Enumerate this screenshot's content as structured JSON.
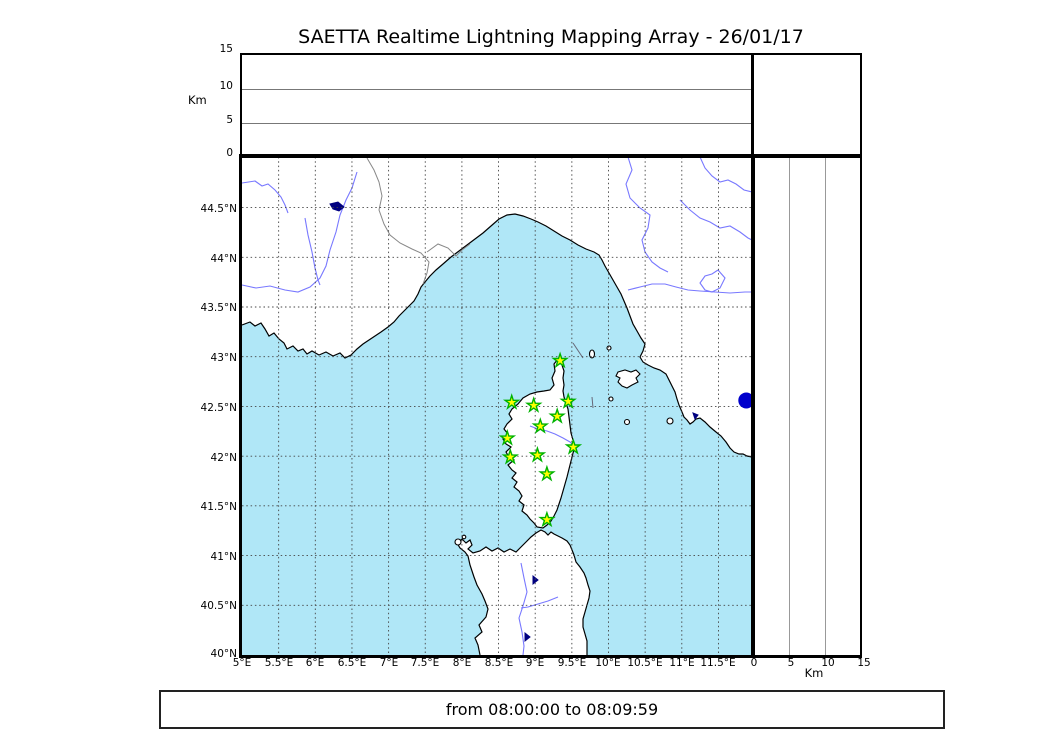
{
  "title": "SAETTA Realtime Lightning Mapping Array - 26/01/17",
  "status": {
    "text": "from 08:00:00 to 08:09:59"
  },
  "axes": {
    "top": {
      "label": "Km",
      "ticks": [
        "15",
        "10",
        "5",
        "0"
      ]
    },
    "right": {
      "label": "Km",
      "ticks": [
        "0",
        "5",
        "10",
        "15"
      ]
    },
    "lat_ticks": [
      "44.5°N",
      "44°N",
      "43.5°N",
      "43°N",
      "42.5°N",
      "42°N",
      "41.5°N",
      "41°N",
      "40.5°N",
      "40°N"
    ],
    "lon_ticks": [
      "5°E",
      "5.5°E",
      "6°E",
      "6.5°E",
      "7°E",
      "7.5°E",
      "8°E",
      "8.5°E",
      "9°E",
      "9.5°E",
      "10°E",
      "10.5°E",
      "11°E",
      "11.5°E"
    ]
  },
  "chart_data": {
    "type": "scatter",
    "title": "SAETTA Realtime Lightning Mapping Array - 26/01/17",
    "time_window": "from 08:00:00 to 08:09:59",
    "map_extent": {
      "lon": [
        5.0,
        11.96
      ],
      "lat": [
        40.0,
        45.01
      ]
    },
    "altitude_axis_km": {
      "range": [
        0,
        15
      ],
      "ticks": [
        0,
        5,
        10,
        15
      ],
      "gridlines_km": [
        5,
        10
      ]
    },
    "grid_step_deg": 0.5,
    "stations": [
      {
        "lon": 9.34,
        "lat": 42.96
      },
      {
        "lon": 8.68,
        "lat": 42.54
      },
      {
        "lon": 8.98,
        "lat": 42.51
      },
      {
        "lon": 9.45,
        "lat": 42.55
      },
      {
        "lon": 9.3,
        "lat": 42.4
      },
      {
        "lon": 9.07,
        "lat": 42.3
      },
      {
        "lon": 8.62,
        "lat": 42.18
      },
      {
        "lon": 9.52,
        "lat": 42.09
      },
      {
        "lon": 9.03,
        "lat": 42.01
      },
      {
        "lon": 8.66,
        "lat": 41.99
      },
      {
        "lon": 9.16,
        "lat": 41.82
      },
      {
        "lon": 9.16,
        "lat": 41.36
      }
    ],
    "event_dot": {
      "lon": 11.88,
      "lat": 42.56
    }
  },
  "colors": {
    "sea": "#b0e7f7",
    "land": "#ffffff",
    "coast": "#000000",
    "river": "#7878ff",
    "lake": "#000080",
    "country_border": "#888888",
    "grid": "#444444",
    "station_fill": "#ffff00",
    "station_stroke": "#00b300",
    "event_dot": "#0000cc"
  }
}
